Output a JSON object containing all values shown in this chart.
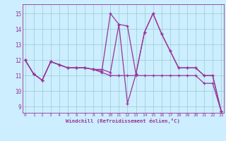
{
  "xlabel": "Windchill (Refroidissement éolien,°C)",
  "bg_color": "#cceeff",
  "grid_color": "#99cccc",
  "line_color": "#993399",
  "spine_color": "#993399",
  "x_ticks": [
    0,
    1,
    2,
    3,
    4,
    5,
    6,
    7,
    8,
    9,
    10,
    11,
    12,
    13,
    14,
    15,
    16,
    17,
    18,
    19,
    20,
    21,
    22,
    23
  ],
  "y_ticks": [
    9,
    10,
    11,
    12,
    13,
    14,
    15
  ],
  "ylim": [
    8.6,
    15.6
  ],
  "xlim": [
    -0.3,
    23.3
  ],
  "series": [
    [
      12.0,
      11.1,
      10.7,
      11.9,
      11.7,
      11.5,
      11.5,
      11.5,
      11.4,
      11.2,
      11.0,
      11.0,
      11.0,
      11.0,
      11.0,
      11.0,
      11.0,
      11.0,
      11.0,
      11.0,
      11.0,
      10.5,
      10.5,
      8.7
    ],
    [
      12.0,
      11.1,
      10.7,
      11.9,
      11.7,
      11.5,
      11.5,
      11.5,
      11.4,
      11.4,
      11.2,
      14.3,
      14.2,
      11.1,
      13.8,
      15.0,
      13.7,
      12.6,
      11.5,
      11.5,
      11.5,
      11.0,
      11.0,
      8.7
    ],
    [
      12.0,
      11.1,
      10.7,
      11.9,
      11.7,
      11.5,
      11.5,
      11.5,
      11.4,
      11.3,
      15.0,
      14.3,
      9.2,
      11.1,
      13.8,
      15.0,
      13.7,
      12.6,
      11.5,
      11.5,
      11.5,
      11.0,
      11.0,
      8.7
    ]
  ]
}
